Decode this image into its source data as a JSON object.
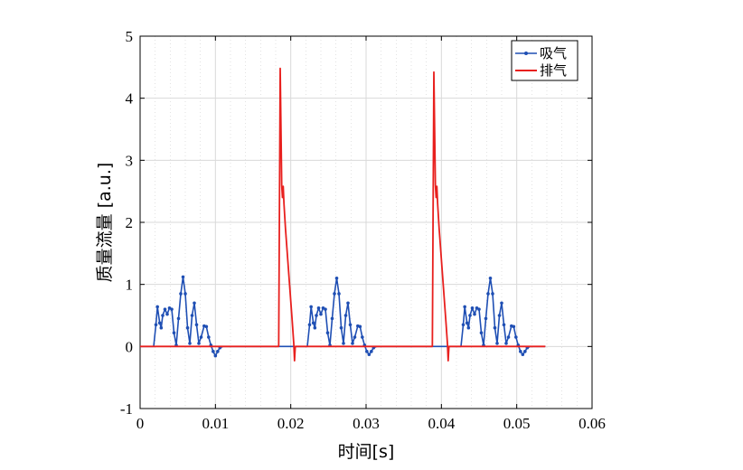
{
  "chart_data": {
    "type": "line",
    "title": "",
    "xlabel": "时间[s]",
    "ylabel": "质量流量 [a.u.]",
    "xlim": [
      0,
      0.06
    ],
    "ylim": [
      -1,
      5
    ],
    "x_ticks": [
      "0",
      "0.01",
      "0.02",
      "0.03",
      "0.04",
      "0.05",
      "0.06"
    ],
    "y_ticks": [
      "-1",
      "0",
      "1",
      "2",
      "3",
      "4",
      "5"
    ],
    "grid": true,
    "legend_position": "top-right",
    "series": [
      {
        "name": "吸气",
        "color": "#1f4fb4",
        "marker": "dot",
        "points": [
          [
            0.0,
            0.0
          ],
          [
            0.0018,
            0.0
          ],
          [
            0.0021,
            0.35
          ],
          [
            0.0023,
            0.64
          ],
          [
            0.0026,
            0.38
          ],
          [
            0.0028,
            0.3
          ],
          [
            0.003,
            0.5
          ],
          [
            0.0033,
            0.6
          ],
          [
            0.0036,
            0.52
          ],
          [
            0.0039,
            0.62
          ],
          [
            0.0042,
            0.6
          ],
          [
            0.0045,
            0.22
          ],
          [
            0.0048,
            0.02
          ],
          [
            0.0051,
            0.45
          ],
          [
            0.0054,
            0.85
          ],
          [
            0.0057,
            1.12
          ],
          [
            0.006,
            0.85
          ],
          [
            0.0063,
            0.3
          ],
          [
            0.0066,
            0.05
          ],
          [
            0.0069,
            0.5
          ],
          [
            0.0072,
            0.7
          ],
          [
            0.0075,
            0.35
          ],
          [
            0.0078,
            0.05
          ],
          [
            0.0081,
            0.15
          ],
          [
            0.0085,
            0.33
          ],
          [
            0.0088,
            0.32
          ],
          [
            0.0091,
            0.15
          ],
          [
            0.0094,
            0.02
          ],
          [
            0.0097,
            -0.08
          ],
          [
            0.01,
            -0.15
          ],
          [
            0.0103,
            -0.08
          ],
          [
            0.0106,
            -0.02
          ],
          [
            0.011,
            0.0
          ],
          [
            0.02,
            0.0
          ],
          [
            0.0222,
            0.0
          ],
          [
            0.0225,
            0.35
          ],
          [
            0.0227,
            0.64
          ],
          [
            0.023,
            0.38
          ],
          [
            0.0232,
            0.3
          ],
          [
            0.0234,
            0.5
          ],
          [
            0.0237,
            0.62
          ],
          [
            0.024,
            0.52
          ],
          [
            0.0243,
            0.62
          ],
          [
            0.0246,
            0.6
          ],
          [
            0.0249,
            0.22
          ],
          [
            0.0252,
            0.02
          ],
          [
            0.0255,
            0.45
          ],
          [
            0.0258,
            0.85
          ],
          [
            0.0261,
            1.1
          ],
          [
            0.0264,
            0.85
          ],
          [
            0.0267,
            0.3
          ],
          [
            0.027,
            0.05
          ],
          [
            0.0273,
            0.5
          ],
          [
            0.0276,
            0.7
          ],
          [
            0.0279,
            0.35
          ],
          [
            0.0282,
            0.05
          ],
          [
            0.0285,
            0.15
          ],
          [
            0.0289,
            0.33
          ],
          [
            0.0292,
            0.32
          ],
          [
            0.0295,
            0.15
          ],
          [
            0.0298,
            0.02
          ],
          [
            0.0301,
            -0.08
          ],
          [
            0.0304,
            -0.13
          ],
          [
            0.0307,
            -0.08
          ],
          [
            0.031,
            -0.02
          ],
          [
            0.0314,
            0.0
          ],
          [
            0.0405,
            0.0
          ],
          [
            0.0426,
            0.0
          ],
          [
            0.0429,
            0.35
          ],
          [
            0.0431,
            0.64
          ],
          [
            0.0434,
            0.38
          ],
          [
            0.0436,
            0.3
          ],
          [
            0.0438,
            0.5
          ],
          [
            0.0441,
            0.62
          ],
          [
            0.0444,
            0.52
          ],
          [
            0.0447,
            0.62
          ],
          [
            0.045,
            0.6
          ],
          [
            0.0453,
            0.22
          ],
          [
            0.0456,
            0.02
          ],
          [
            0.0459,
            0.45
          ],
          [
            0.0462,
            0.85
          ],
          [
            0.0465,
            1.1
          ],
          [
            0.0468,
            0.85
          ],
          [
            0.0471,
            0.3
          ],
          [
            0.0474,
            0.05
          ],
          [
            0.0477,
            0.5
          ],
          [
            0.048,
            0.7
          ],
          [
            0.0483,
            0.35
          ],
          [
            0.0486,
            0.05
          ],
          [
            0.0489,
            0.15
          ],
          [
            0.0493,
            0.33
          ],
          [
            0.0496,
            0.32
          ],
          [
            0.0499,
            0.15
          ],
          [
            0.0502,
            0.02
          ],
          [
            0.0505,
            -0.08
          ],
          [
            0.0508,
            -0.13
          ],
          [
            0.0511,
            -0.08
          ],
          [
            0.0514,
            -0.02
          ],
          [
            0.0518,
            0.0
          ],
          [
            0.0538,
            0.0
          ]
        ]
      },
      {
        "name": "排气",
        "color": "#e8201e",
        "marker": "none",
        "points": [
          [
            0.0,
            0.0
          ],
          [
            0.0184,
            0.0
          ],
          [
            0.0186,
            4.48
          ],
          [
            0.0188,
            2.6
          ],
          [
            0.0189,
            2.4
          ],
          [
            0.019,
            2.58
          ],
          [
            0.0191,
            2.3
          ],
          [
            0.0193,
            1.9
          ],
          [
            0.0196,
            1.4
          ],
          [
            0.0199,
            0.9
          ],
          [
            0.0202,
            0.4
          ],
          [
            0.0204,
            0.05
          ],
          [
            0.0205,
            -0.23
          ],
          [
            0.0206,
            0.0
          ],
          [
            0.0388,
            0.0
          ],
          [
            0.039,
            4.42
          ],
          [
            0.0392,
            2.6
          ],
          [
            0.0393,
            2.4
          ],
          [
            0.0394,
            2.58
          ],
          [
            0.0395,
            2.3
          ],
          [
            0.0397,
            1.9
          ],
          [
            0.04,
            1.4
          ],
          [
            0.0403,
            0.9
          ],
          [
            0.0406,
            0.4
          ],
          [
            0.0408,
            0.05
          ],
          [
            0.0409,
            -0.23
          ],
          [
            0.041,
            0.0
          ],
          [
            0.0538,
            0.0
          ]
        ]
      }
    ]
  }
}
